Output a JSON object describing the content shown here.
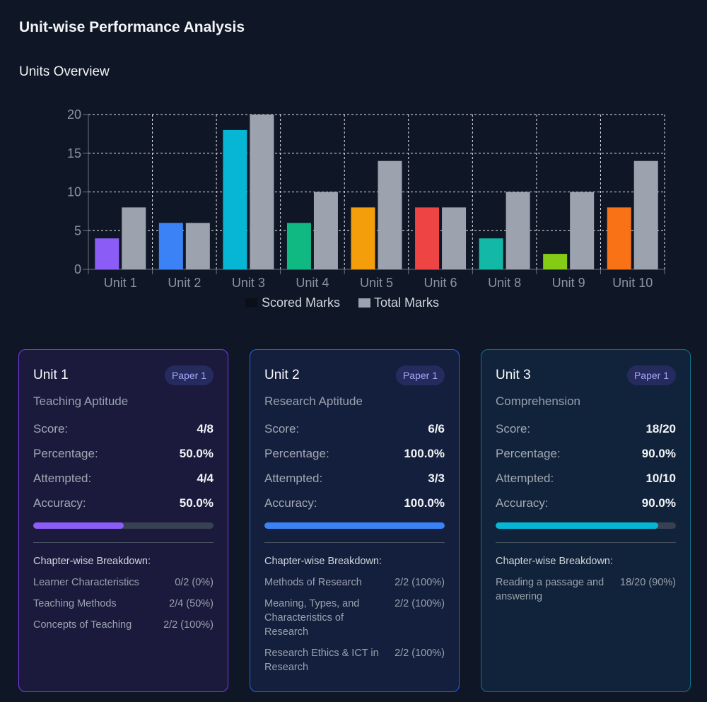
{
  "page": {
    "title": "Unit-wise Performance Analysis"
  },
  "overview": {
    "title": "Units Overview"
  },
  "chart_data": {
    "type": "bar",
    "title": "Units Overview",
    "categories": [
      "Unit 1",
      "Unit 2",
      "Unit 3",
      "Unit 4",
      "Unit 5",
      "Unit 6",
      "Unit 8",
      "Unit 9",
      "Unit 10"
    ],
    "series": [
      {
        "name": "Scored Marks",
        "values": [
          4,
          6,
          18,
          6,
          8,
          8,
          4,
          2,
          8
        ],
        "colors": [
          "#8b5cf6",
          "#3b82f6",
          "#06b6d4",
          "#10b981",
          "#f59e0b",
          "#ef4444",
          "#14b8a6",
          "#84cc16",
          "#f97316"
        ],
        "legend_color": "#0b0f19"
      },
      {
        "name": "Total Marks",
        "values": [
          8,
          6,
          20,
          10,
          14,
          8,
          10,
          10,
          14
        ],
        "color": "#9ca3af"
      }
    ],
    "yticks": [
      0,
      5,
      10,
      15,
      20
    ],
    "ylim": [
      0,
      20
    ],
    "grid": true,
    "legend": "bottom-center",
    "xlabel": "",
    "ylabel": ""
  },
  "cards": [
    {
      "unit": "Unit 1",
      "badge": "Paper 1",
      "subject": "Teaching Aptitude",
      "border": "#7c3aed",
      "bg": "#1b1a3d",
      "bar_color": "#8b5cf6",
      "stats": [
        {
          "label": "Score:",
          "value": "4/8"
        },
        {
          "label": "Percentage:",
          "value": "50.0%"
        },
        {
          "label": "Attempted:",
          "value": "4/4"
        },
        {
          "label": "Accuracy:",
          "value": "50.0%"
        }
      ],
      "progress": 0.5,
      "breakdown_title": "Chapter-wise Breakdown:",
      "chapters": [
        {
          "name": "Learner Characteristics",
          "score": "0/2 (0%)"
        },
        {
          "name": "Teaching Methods",
          "score": "2/4 (50%)"
        },
        {
          "name": "Concepts of Teaching",
          "score": "2/2 (100%)"
        }
      ]
    },
    {
      "unit": "Unit 2",
      "badge": "Paper 1",
      "subject": "Research Aptitude",
      "border": "#2563eb",
      "bg": "#141f3d",
      "bar_color": "#3b82f6",
      "stats": [
        {
          "label": "Score:",
          "value": "6/6"
        },
        {
          "label": "Percentage:",
          "value": "100.0%"
        },
        {
          "label": "Attempted:",
          "value": "3/3"
        },
        {
          "label": "Accuracy:",
          "value": "100.0%"
        }
      ],
      "progress": 1.0,
      "breakdown_title": "Chapter-wise Breakdown:",
      "chapters": [
        {
          "name": "Methods of Research",
          "score": "2/2 (100%)"
        },
        {
          "name": "Meaning, Types, and Characteristics of Research",
          "score": "2/2 (100%)"
        },
        {
          "name": "Research Ethics & ICT in Research",
          "score": "2/2 (100%)"
        }
      ]
    },
    {
      "unit": "Unit 3",
      "badge": "Paper 1",
      "subject": "Comprehension",
      "border": "#0e7490",
      "bg": "#11233a",
      "bar_color": "#06b6d4",
      "stats": [
        {
          "label": "Score:",
          "value": "18/20"
        },
        {
          "label": "Percentage:",
          "value": "90.0%"
        },
        {
          "label": "Attempted:",
          "value": "10/10"
        },
        {
          "label": "Accuracy:",
          "value": "90.0%"
        }
      ],
      "progress": 0.9,
      "breakdown_title": "Chapter-wise Breakdown:",
      "chapters": [
        {
          "name": "Reading a passage and answering",
          "score": "18/20 (90%)"
        }
      ]
    }
  ]
}
